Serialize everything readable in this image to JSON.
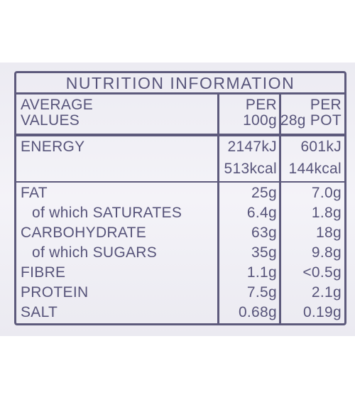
{
  "header": {
    "title": "NUTRITION INFORMATION"
  },
  "table": {
    "columns": [
      [
        "AVERAGE",
        "VALUES"
      ],
      [
        "PER",
        "100g"
      ],
      [
        "PER",
        "28g POT"
      ]
    ],
    "rows": [
      {
        "label": "ENERGY",
        "per_100g": [
          "2147kJ",
          "513kcal"
        ],
        "per_pot": [
          "601kJ",
          "144kcal"
        ]
      },
      {
        "label": "FAT",
        "per_100g": [
          "25g"
        ],
        "per_pot": [
          "7.0g"
        ]
      },
      {
        "label": "of which SATURATES",
        "sub": true,
        "per_100g": [
          "6.4g"
        ],
        "per_pot": [
          "1.8g"
        ]
      },
      {
        "label": "CARBOHYDRATE",
        "per_100g": [
          "63g"
        ],
        "per_pot": [
          "18g"
        ]
      },
      {
        "label": "of which SUGARS",
        "sub": true,
        "per_100g": [
          "35g"
        ],
        "per_pot": [
          "9.8g"
        ]
      },
      {
        "label": "FIBRE",
        "per_100g": [
          "1.1g"
        ],
        "per_pot": [
          "<0.5g"
        ]
      },
      {
        "label": "PROTEIN",
        "per_100g": [
          "7.5g"
        ],
        "per_pot": [
          "2.1g"
        ]
      },
      {
        "label": "SALT",
        "per_100g": [
          "0.68g"
        ],
        "per_pot": [
          "0.19g"
        ]
      }
    ]
  }
}
